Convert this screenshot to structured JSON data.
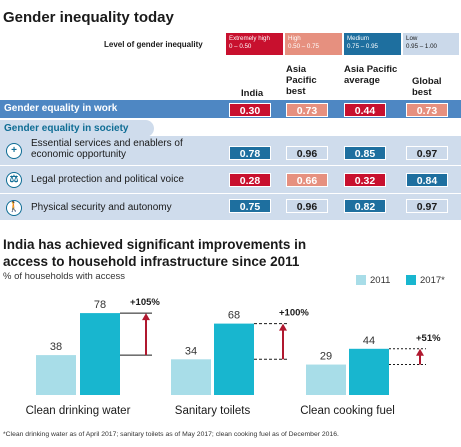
{
  "table": {
    "title": "Gender inequality today",
    "level_label": "Level of gender inequality",
    "levels": [
      {
        "name": "Extremely high",
        "range": "0 – 0.50",
        "color": "#c8102e"
      },
      {
        "name": "High",
        "range": "0.50 – 0.75",
        "color": "#e6907f"
      },
      {
        "name": "Medium",
        "range": "0.75 – 0.95",
        "color": "#1e6f9f"
      },
      {
        "name": "Low",
        "range": "0.95 – 1.00",
        "color": "#cbd9ea"
      }
    ],
    "columns": [
      "India",
      "Asia Pacific best",
      "Asia Pacific average",
      "Global best"
    ],
    "section_work": "Gender equality in work",
    "section_society": "Gender equality in society",
    "rows": [
      {
        "label": "",
        "values": [
          "0.30",
          "0.73",
          "0.44",
          "0.73"
        ],
        "levels": [
          0,
          1,
          0,
          1
        ]
      },
      {
        "label": "Essential services  and enablers of economic opportunity",
        "icon": "plus-icon",
        "values": [
          "0.78",
          "0.96",
          "0.85",
          "0.97"
        ],
        "levels": [
          2,
          3,
          2,
          3
        ]
      },
      {
        "label": "Legal protection and political voice",
        "icon": "scales-icon",
        "values": [
          "0.28",
          "0.66",
          "0.32",
          "0.84"
        ],
        "levels": [
          0,
          1,
          0,
          2
        ]
      },
      {
        "label": "Physical security and autonomy",
        "icon": "person-icon",
        "values": [
          "0.75",
          "0.96",
          "0.82",
          "0.97"
        ],
        "levels": [
          2,
          3,
          2,
          3
        ]
      }
    ]
  },
  "chart": {
    "title_line1": "India has achieved significant improvements in",
    "title_line2": "access to household infrastructure since 2011",
    "subtitle": "% of households with access",
    "colors": {
      "y2011": "#a8dde8",
      "y2017": "#18b6cf",
      "arrow": "#b0182f"
    },
    "footnote": "*Clean drinking water as of April 2017; sanitary toilets as of May 2017; clean cooking fuel as of December 2016."
  },
  "chart_data": {
    "type": "bar",
    "categories": [
      "Clean drinking water",
      "Sanitary toilets",
      "Clean cooking fuel"
    ],
    "series": [
      {
        "name": "2011",
        "values": [
          38,
          34,
          29
        ]
      },
      {
        "name": "2017*",
        "values": [
          78,
          68,
          44
        ]
      }
    ],
    "changes": [
      "+105%",
      "+100%",
      "+51%"
    ],
    "ylim": [
      0,
      80
    ]
  }
}
